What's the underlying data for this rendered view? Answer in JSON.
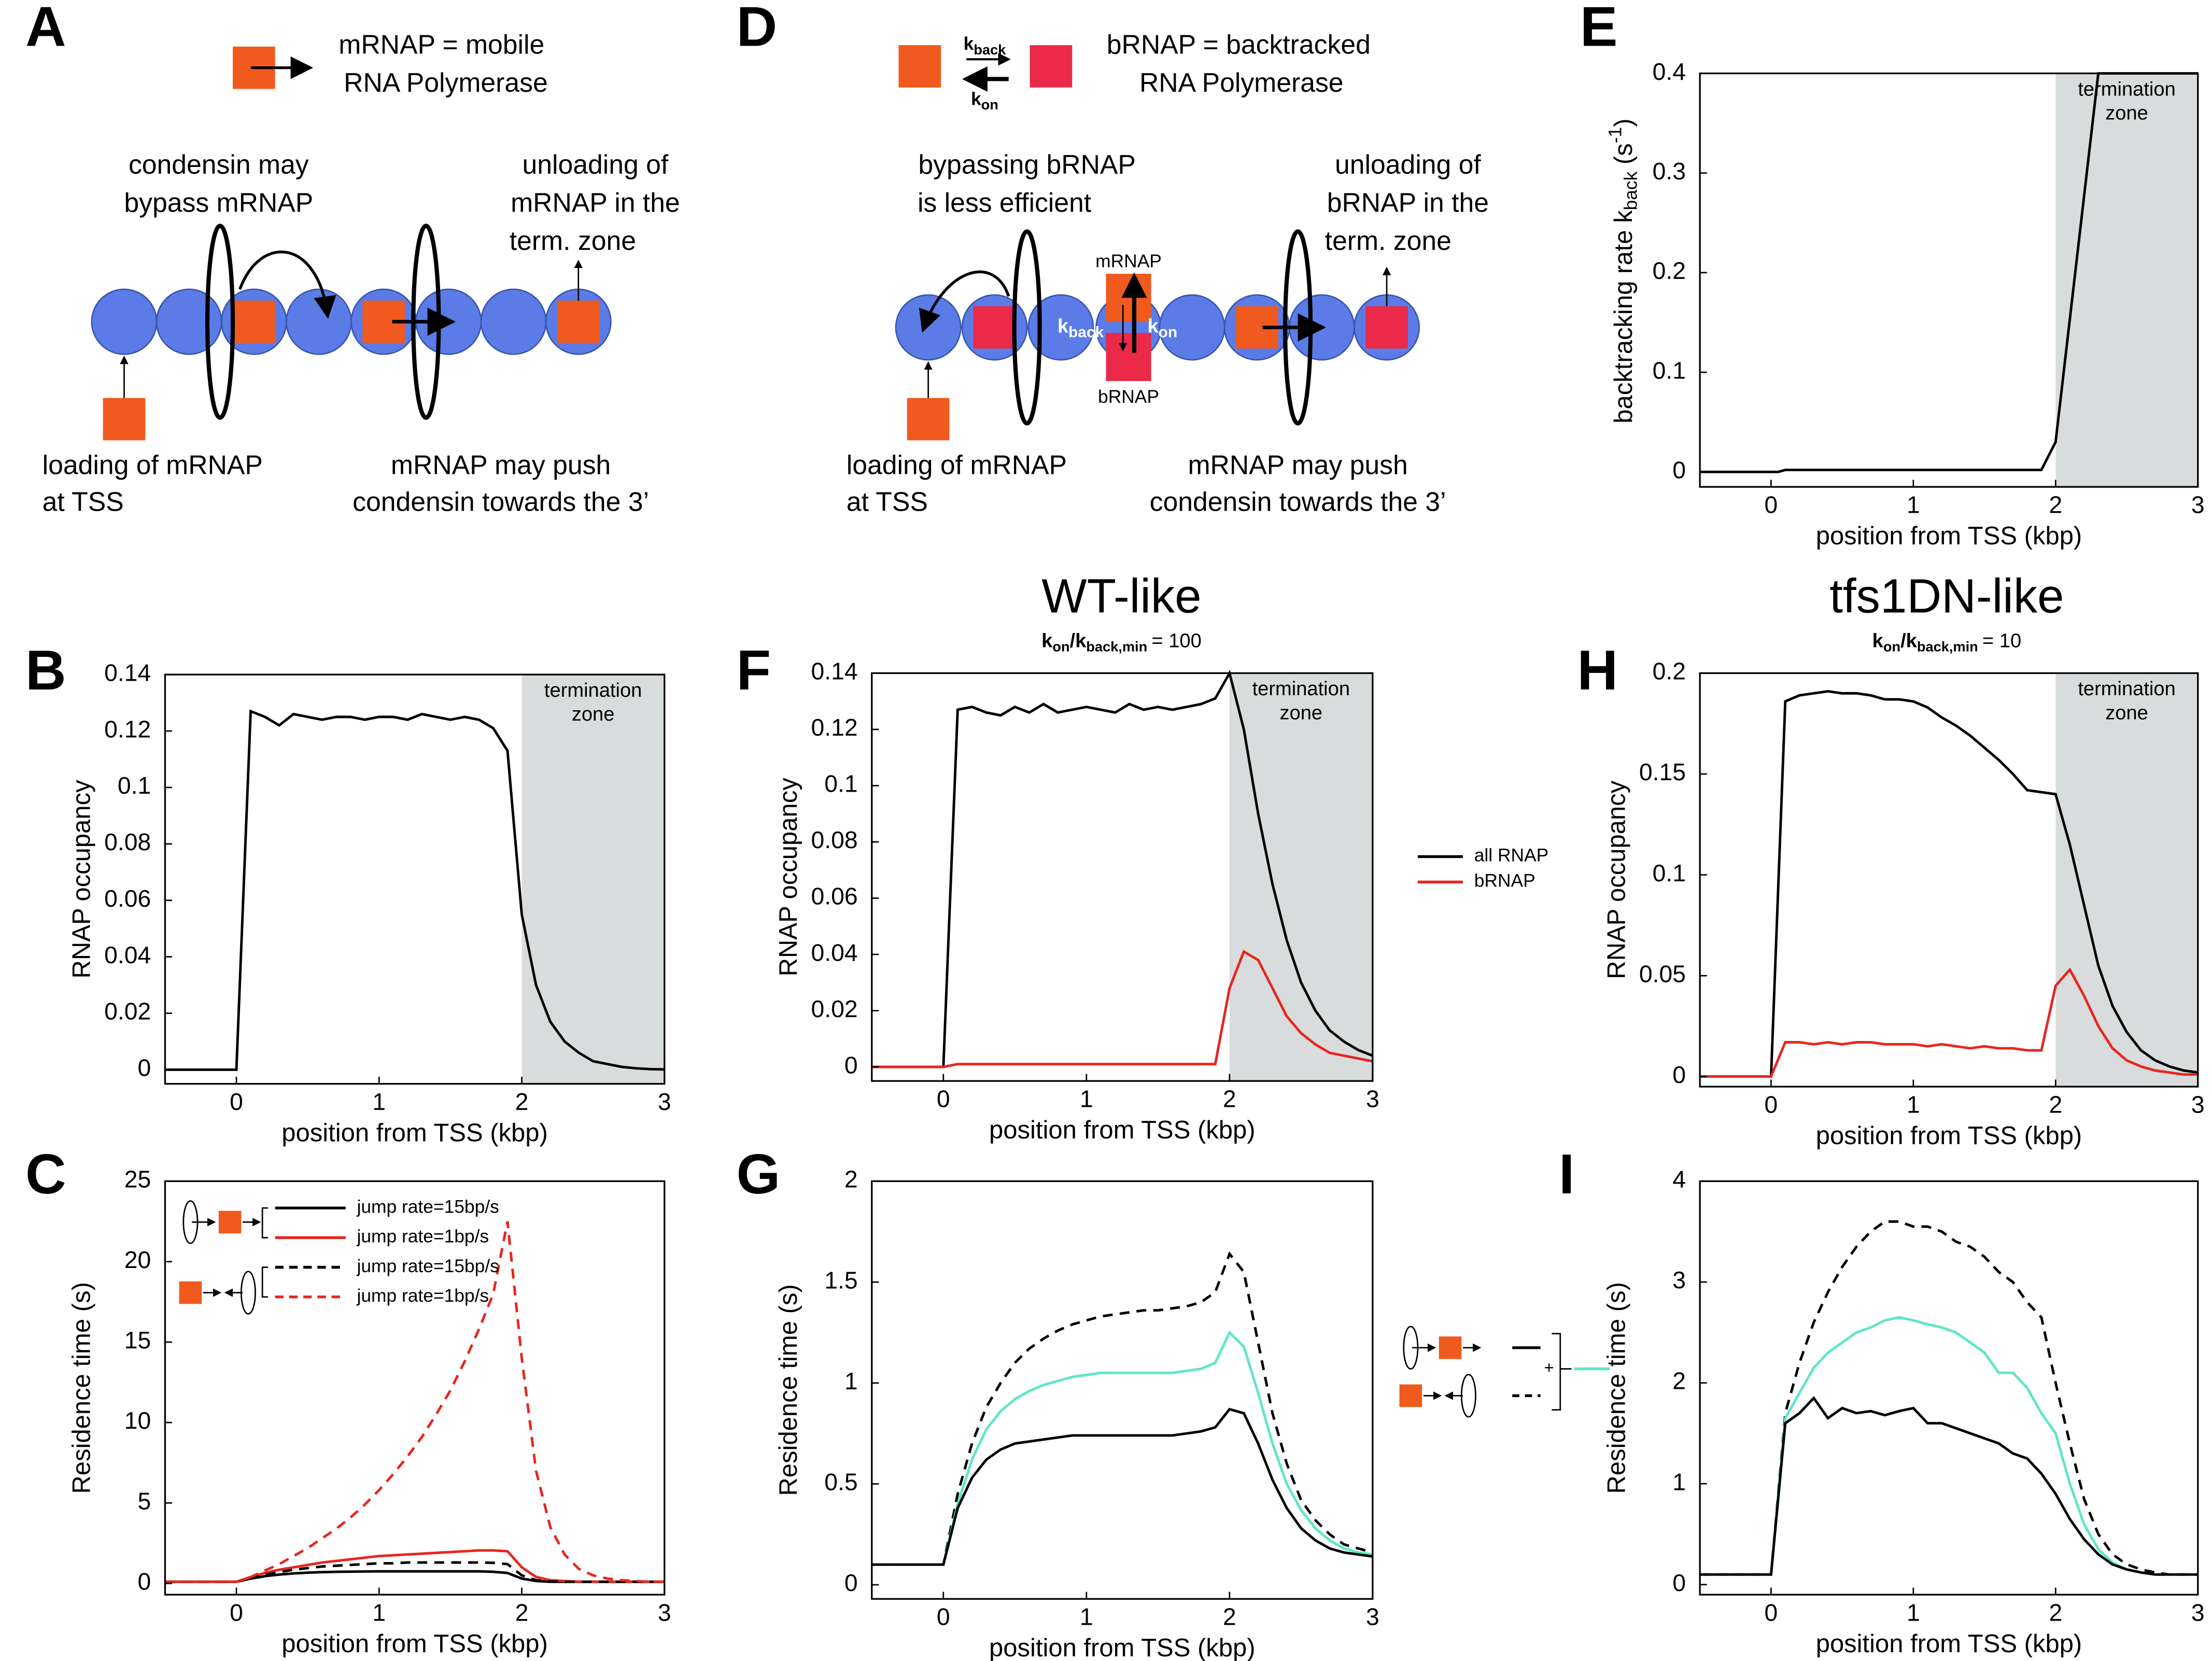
{
  "diagrams": [
    {
      "panel": "A",
      "legend": [
        "mRNAP = mobile",
        "RNA Polymerase"
      ],
      "bypass": [
        "condensin may",
        "bypass mRNAP"
      ],
      "unloading": [
        "unloading of",
        "mRNAP in the",
        "term. zone"
      ],
      "loading": [
        "loading of mRNAP",
        "at TSS"
      ],
      "push": [
        "mRNAP may push",
        "condensin towards the 3’"
      ]
    },
    {
      "panel": "D",
      "legend": [
        "bRNAP = backtracked",
        "RNA Polymerase"
      ],
      "k_back": [
        "k",
        "back"
      ],
      "k_on": [
        "k",
        "on"
      ],
      "bypass": [
        "bypassing bRNAP",
        "is less efficient"
      ],
      "unloading": [
        "unloading of",
        "bRNAP in the",
        "term. zone"
      ],
      "loading": [
        "loading of mRNAP",
        "at TSS"
      ],
      "push": [
        "mRNAP may push",
        "condensin towards the 3’"
      ],
      "mRNAP": "mRNAP",
      "bRNAP": "bRNAP"
    }
  ],
  "chart_data": [
    {
      "panel": "E",
      "type": "line",
      "xlabel": "position from TSS (kbp)",
      "ylabel": [
        "backtracking rate k",
        "back",
        " (s",
        "-1",
        ")"
      ],
      "x": [
        -0.5,
        0,
        0.05,
        0.1,
        1.9,
        2.0,
        2.3,
        3
      ],
      "series": [
        {
          "color": "#000000",
          "values": [
            0,
            0,
            0,
            0.002,
            0.002,
            0.03,
            0.4,
            0.4
          ]
        }
      ],
      "termination_zone": {
        "x": [
          2,
          3
        ],
        "label": [
          "termination",
          "zone"
        ]
      },
      "xlim": [
        -0.5,
        3
      ],
      "ylim": [
        -0.015,
        0.4
      ],
      "xticks": [
        0,
        1,
        2,
        3
      ],
      "yticks": [
        0,
        0.1,
        0.2,
        0.3,
        0.4
      ]
    },
    {
      "panel": "B",
      "type": "line",
      "xlabel": "position from TSS (kbp)",
      "ylabel": "RNAP occupancy",
      "x": [
        -0.5,
        0,
        0.1,
        0.2,
        0.3,
        0.4,
        0.5,
        0.6,
        0.7,
        0.8,
        0.9,
        1.0,
        1.1,
        1.2,
        1.3,
        1.4,
        1.5,
        1.6,
        1.7,
        1.8,
        1.9,
        2.0,
        2.1,
        2.2,
        2.3,
        2.4,
        2.5,
        2.6,
        2.7,
        2.8,
        2.9,
        3.0
      ],
      "series": [
        {
          "color": "#000000",
          "values": [
            0,
            0,
            0.127,
            0.125,
            0.122,
            0.126,
            0.125,
            0.124,
            0.125,
            0.125,
            0.124,
            0.125,
            0.125,
            0.124,
            0.126,
            0.125,
            0.124,
            0.125,
            0.124,
            0.121,
            0.113,
            0.055,
            0.03,
            0.017,
            0.01,
            0.006,
            0.003,
            0.002,
            0.001,
            0.0005,
            0.0002,
            0.0001
          ]
        }
      ],
      "termination_zone": {
        "x": [
          2,
          3
        ],
        "label": [
          "termination",
          "zone"
        ]
      },
      "xlim": [
        -0.5,
        3
      ],
      "ylim": [
        -0.005,
        0.14
      ],
      "xticks": [
        0,
        1,
        2,
        3
      ],
      "yticks": [
        0,
        0.02,
        0.04,
        0.06,
        0.08,
        0.1,
        0.12,
        0.14
      ]
    },
    {
      "panel": "F",
      "type": "line",
      "title": "WT-like",
      "subtitle": [
        "k",
        "on",
        "/k",
        "back,min",
        "= 100"
      ],
      "xlabel": "position from TSS (kbp)",
      "ylabel": "RNAP occupancy",
      "x": [
        -0.5,
        0,
        0.1,
        0.2,
        0.3,
        0.4,
        0.5,
        0.6,
        0.7,
        0.8,
        0.9,
        1.0,
        1.1,
        1.2,
        1.3,
        1.4,
        1.5,
        1.6,
        1.7,
        1.8,
        1.9,
        2.0,
        2.1,
        2.2,
        2.3,
        2.4,
        2.5,
        2.6,
        2.7,
        2.8,
        2.9,
        3.0
      ],
      "series": [
        {
          "name": "all RNAP",
          "color": "#000000",
          "values": [
            0,
            0,
            0.127,
            0.128,
            0.126,
            0.125,
            0.128,
            0.126,
            0.129,
            0.126,
            0.127,
            0.128,
            0.127,
            0.126,
            0.129,
            0.127,
            0.128,
            0.127,
            0.128,
            0.129,
            0.131,
            0.14,
            0.12,
            0.09,
            0.065,
            0.045,
            0.03,
            0.02,
            0.013,
            0.009,
            0.006,
            0.004
          ]
        },
        {
          "name": "bRNAP",
          "color": "#e8261e",
          "values": [
            0,
            0,
            0.001,
            0.001,
            0.001,
            0.001,
            0.001,
            0.001,
            0.001,
            0.001,
            0.001,
            0.001,
            0.001,
            0.001,
            0.001,
            0.001,
            0.001,
            0.001,
            0.001,
            0.001,
            0.001,
            0.028,
            0.041,
            0.038,
            0.028,
            0.018,
            0.012,
            0.008,
            0.005,
            0.004,
            0.003,
            0.002
          ]
        }
      ],
      "termination_zone": {
        "x": [
          2,
          3
        ],
        "label": [
          "termination",
          "zone"
        ]
      },
      "xlim": [
        -0.5,
        3
      ],
      "ylim": [
        -0.005,
        0.14
      ],
      "xticks": [
        0,
        1,
        2,
        3
      ],
      "yticks": [
        0,
        0.02,
        0.04,
        0.06,
        0.08,
        0.1,
        0.12,
        0.14
      ]
    },
    {
      "panel": "H",
      "type": "line",
      "title": "tfs1DN-like",
      "subtitle": [
        "k",
        "on",
        "/k",
        "back,min",
        "= 10"
      ],
      "xlabel": "position from TSS (kbp)",
      "ylabel": "RNAP occupancy",
      "x": [
        -0.5,
        0,
        0.1,
        0.2,
        0.3,
        0.4,
        0.5,
        0.6,
        0.7,
        0.8,
        0.9,
        1.0,
        1.1,
        1.2,
        1.3,
        1.4,
        1.5,
        1.6,
        1.7,
        1.8,
        1.9,
        2.0,
        2.1,
        2.2,
        2.3,
        2.4,
        2.5,
        2.6,
        2.7,
        2.8,
        2.9,
        3.0
      ],
      "series": [
        {
          "color": "#000000",
          "values": [
            0,
            0,
            0.186,
            0.189,
            0.19,
            0.191,
            0.19,
            0.19,
            0.189,
            0.187,
            0.187,
            0.186,
            0.183,
            0.178,
            0.174,
            0.169,
            0.163,
            0.157,
            0.15,
            0.142,
            0.141,
            0.14,
            0.115,
            0.085,
            0.055,
            0.035,
            0.022,
            0.013,
            0.008,
            0.005,
            0.003,
            0.002
          ]
        },
        {
          "color": "#e8261e",
          "values": [
            0,
            0,
            0.017,
            0.017,
            0.016,
            0.017,
            0.016,
            0.017,
            0.017,
            0.016,
            0.016,
            0.016,
            0.015,
            0.016,
            0.015,
            0.014,
            0.015,
            0.014,
            0.014,
            0.013,
            0.013,
            0.045,
            0.053,
            0.04,
            0.025,
            0.014,
            0.008,
            0.005,
            0.003,
            0.002,
            0.001,
            0.001
          ]
        }
      ],
      "termination_zone": {
        "x": [
          2,
          3
        ],
        "label": [
          "termination",
          "zone"
        ]
      },
      "xlim": [
        -0.5,
        3
      ],
      "ylim": [
        -0.005,
        0.2
      ],
      "xticks": [
        0,
        1,
        2,
        3
      ],
      "yticks": [
        0,
        0.05,
        0.1,
        0.15,
        0.2
      ]
    },
    {
      "panel": "C",
      "type": "line",
      "xlabel": "position from TSS (kbp)",
      "ylabel": "Residence time (s)",
      "x": [
        -0.5,
        0,
        0.1,
        0.2,
        0.3,
        0.4,
        0.5,
        0.6,
        0.7,
        0.8,
        0.9,
        1.0,
        1.1,
        1.2,
        1.3,
        1.4,
        1.5,
        1.6,
        1.7,
        1.8,
        1.9,
        2.0,
        2.1,
        2.2,
        2.3,
        2.4,
        2.5,
        2.6,
        2.7,
        2.8,
        2.9,
        3.0
      ],
      "series": [
        {
          "name": "jump rate=15bp/s",
          "color": "#000000",
          "dash": false,
          "values": [
            0.1,
            0.1,
            0.3,
            0.45,
            0.55,
            0.62,
            0.67,
            0.7,
            0.72,
            0.73,
            0.74,
            0.75,
            0.75,
            0.75,
            0.75,
            0.75,
            0.75,
            0.75,
            0.75,
            0.72,
            0.65,
            0.3,
            0.15,
            0.1,
            0.1,
            0.1,
            0.1,
            0.1,
            0.1,
            0.1,
            0.1,
            0.1
          ]
        },
        {
          "name": "jump rate=1bp/s",
          "color": "#e8261e",
          "dash": false,
          "values": [
            0.1,
            0.1,
            0.4,
            0.65,
            0.85,
            1.0,
            1.15,
            1.3,
            1.4,
            1.5,
            1.6,
            1.7,
            1.75,
            1.8,
            1.85,
            1.9,
            1.95,
            2.0,
            2.05,
            2.05,
            2.0,
            1.0,
            0.4,
            0.2,
            0.15,
            0.1,
            0.1,
            0.1,
            0.1,
            0.1,
            0.1,
            0.1
          ]
        },
        {
          "name": "jump rate=15bp/s",
          "color": "#000000",
          "dash": true,
          "values": [
            0.1,
            0.1,
            0.35,
            0.55,
            0.7,
            0.85,
            0.95,
            1.05,
            1.1,
            1.15,
            1.2,
            1.25,
            1.25,
            1.3,
            1.3,
            1.3,
            1.3,
            1.3,
            1.3,
            1.28,
            1.2,
            0.5,
            0.2,
            0.12,
            0.1,
            0.1,
            0.1,
            0.1,
            0.1,
            0.1,
            0.1,
            0.1
          ]
        },
        {
          "name": "jump rate=1bp/s",
          "color": "#e8261e",
          "dash": true,
          "values": [
            0.1,
            0.1,
            0.4,
            0.8,
            1.2,
            1.7,
            2.2,
            2.8,
            3.4,
            4.1,
            4.9,
            5.8,
            6.8,
            7.9,
            9.1,
            10.5,
            12.0,
            13.8,
            15.8,
            18.0,
            22.5,
            14,
            7,
            3.5,
            1.8,
            0.9,
            0.5,
            0.3,
            0.2,
            0.15,
            0.1,
            0.1
          ]
        }
      ],
      "xlim": [
        -0.5,
        3
      ],
      "ylim": [
        -0.7,
        25
      ],
      "xticks": [
        0,
        1,
        2,
        3
      ],
      "yticks": [
        0,
        5,
        10,
        15,
        20,
        25
      ]
    },
    {
      "panel": "G",
      "type": "line",
      "xlabel": "position from TSS (kbp)",
      "ylabel": "Residence time (s)",
      "legend_text": "+",
      "x": [
        -0.5,
        0,
        0.1,
        0.2,
        0.3,
        0.4,
        0.5,
        0.6,
        0.7,
        0.8,
        0.9,
        1.0,
        1.1,
        1.2,
        1.3,
        1.4,
        1.5,
        1.6,
        1.7,
        1.8,
        1.9,
        2.0,
        2.1,
        2.2,
        2.3,
        2.4,
        2.5,
        2.6,
        2.7,
        2.8,
        2.9,
        3.0
      ],
      "series": [
        {
          "color": "#000000",
          "dash": true,
          "values": [
            0.1,
            0.1,
            0.45,
            0.7,
            0.88,
            1.0,
            1.1,
            1.17,
            1.22,
            1.26,
            1.29,
            1.31,
            1.33,
            1.34,
            1.35,
            1.36,
            1.36,
            1.37,
            1.38,
            1.4,
            1.45,
            1.64,
            1.55,
            1.2,
            0.85,
            0.6,
            0.42,
            0.32,
            0.25,
            0.2,
            0.18,
            0.16
          ]
        },
        {
          "color": "#5ee6c8",
          "dash": false,
          "values": [
            0.1,
            0.1,
            0.4,
            0.62,
            0.77,
            0.86,
            0.92,
            0.96,
            0.99,
            1.01,
            1.03,
            1.04,
            1.05,
            1.05,
            1.05,
            1.05,
            1.05,
            1.05,
            1.06,
            1.07,
            1.1,
            1.25,
            1.18,
            0.95,
            0.7,
            0.5,
            0.37,
            0.28,
            0.22,
            0.18,
            0.16,
            0.15
          ]
        },
        {
          "color": "#000000",
          "dash": false,
          "values": [
            0.1,
            0.1,
            0.38,
            0.53,
            0.62,
            0.67,
            0.7,
            0.71,
            0.72,
            0.73,
            0.74,
            0.74,
            0.74,
            0.74,
            0.74,
            0.74,
            0.74,
            0.74,
            0.75,
            0.76,
            0.78,
            0.87,
            0.85,
            0.7,
            0.52,
            0.38,
            0.28,
            0.22,
            0.18,
            0.16,
            0.15,
            0.14
          ]
        }
      ],
      "xlim": [
        -0.5,
        3
      ],
      "ylim": [
        -0.07,
        2
      ],
      "xticks": [
        0,
        1,
        2,
        3
      ],
      "yticks": [
        0,
        0.5,
        1,
        1.5,
        2
      ]
    },
    {
      "panel": "I",
      "type": "line",
      "xlabel": "position from TSS (kbp)",
      "ylabel": "Residence time (s)",
      "x": [
        -0.5,
        0,
        0.1,
        0.2,
        0.3,
        0.4,
        0.5,
        0.6,
        0.7,
        0.8,
        0.9,
        1.0,
        1.1,
        1.2,
        1.3,
        1.4,
        1.5,
        1.6,
        1.7,
        1.8,
        1.9,
        2.0,
        2.1,
        2.2,
        2.3,
        2.4,
        2.5,
        2.6,
        2.7,
        2.8,
        2.9,
        3.0
      ],
      "series": [
        {
          "color": "#000000",
          "dash": true,
          "values": [
            0.1,
            0.1,
            1.7,
            2.2,
            2.6,
            2.9,
            3.15,
            3.35,
            3.5,
            3.6,
            3.6,
            3.55,
            3.55,
            3.5,
            3.4,
            3.35,
            3.25,
            3.1,
            3.0,
            2.8,
            2.65,
            2.0,
            1.4,
            0.85,
            0.5,
            0.3,
            0.2,
            0.15,
            0.12,
            0.1,
            0.1,
            0.1
          ]
        },
        {
          "color": "#5ee6c8",
          "dash": false,
          "values": [
            0.1,
            0.1,
            1.65,
            1.9,
            2.15,
            2.3,
            2.4,
            2.5,
            2.55,
            2.62,
            2.65,
            2.62,
            2.58,
            2.55,
            2.5,
            2.4,
            2.3,
            2.1,
            2.1,
            1.95,
            1.7,
            1.5,
            1.0,
            0.6,
            0.35,
            0.22,
            0.15,
            0.12,
            0.1,
            0.1,
            0.1,
            0.1
          ]
        },
        {
          "color": "#000000",
          "dash": false,
          "values": [
            0.1,
            0.1,
            1.6,
            1.7,
            1.85,
            1.65,
            1.75,
            1.7,
            1.72,
            1.68,
            1.72,
            1.75,
            1.6,
            1.6,
            1.55,
            1.5,
            1.45,
            1.4,
            1.3,
            1.25,
            1.1,
            0.9,
            0.65,
            0.45,
            0.3,
            0.2,
            0.15,
            0.12,
            0.1,
            0.1,
            0.1,
            0.1
          ]
        }
      ],
      "xlim": [
        -0.5,
        3
      ],
      "ylim": [
        -0.1,
        4
      ],
      "xticks": [
        0,
        1,
        2,
        3
      ],
      "yticks": [
        0,
        1,
        2,
        3,
        4
      ]
    }
  ]
}
